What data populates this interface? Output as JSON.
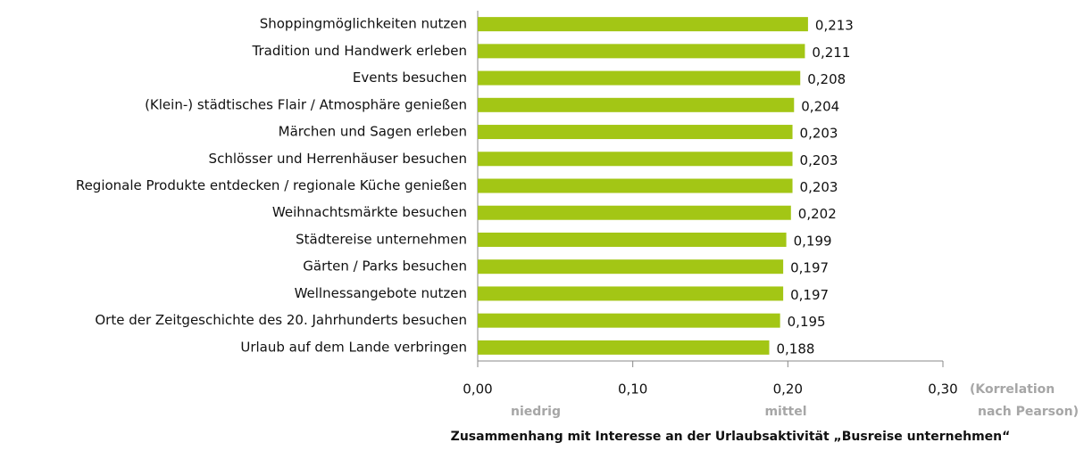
{
  "chart_data": {
    "type": "hbar",
    "categories": [
      "Shoppingmöglichkeiten nutzen",
      "Tradition und Handwerk erleben",
      "Events besuchen",
      "(Klein-) städtisches Flair / Atmosphäre genießen",
      "Märchen und Sagen erleben",
      "Schlösser und Herrenhäuser besuchen",
      "Regionale Produkte entdecken / regionale Küche genießen",
      "Weihnachtsmärkte besuchen",
      "Städtereise unternehmen",
      "Gärten / Parks besuchen",
      "Wellnessangebote nutzen",
      "Orte der Zeitgeschichte des 20. Jahrhunderts besuchen",
      "Urlaub auf dem Lande verbringen"
    ],
    "values": [
      0.213,
      0.211,
      0.208,
      0.204,
      0.203,
      0.203,
      0.203,
      0.202,
      0.199,
      0.197,
      0.197,
      0.195,
      0.188
    ],
    "value_labels": [
      "0,213",
      "0,211",
      "0,208",
      "0,204",
      "0,203",
      "0,203",
      "0,203",
      "0,202",
      "0,199",
      "0,197",
      "0,197",
      "0,195",
      "0,188"
    ],
    "color": "#a3c615",
    "xlim": [
      0,
      0.3
    ],
    "xticks": [
      {
        "value": 0,
        "label": "0,00"
      },
      {
        "value": 0.1,
        "label": "0,10"
      },
      {
        "value": 0.2,
        "label": "0,20"
      },
      {
        "value": 0.3,
        "label": "0,30"
      }
    ],
    "x_label": "Zusammenhang mit Interesse an der Urlaubsaktivität „Busreise unternehmen“",
    "x_unit": [
      "(Korrelation",
      "nach Pearson)"
    ],
    "annotations": [
      "niedrig",
      "mittel"
    ]
  }
}
